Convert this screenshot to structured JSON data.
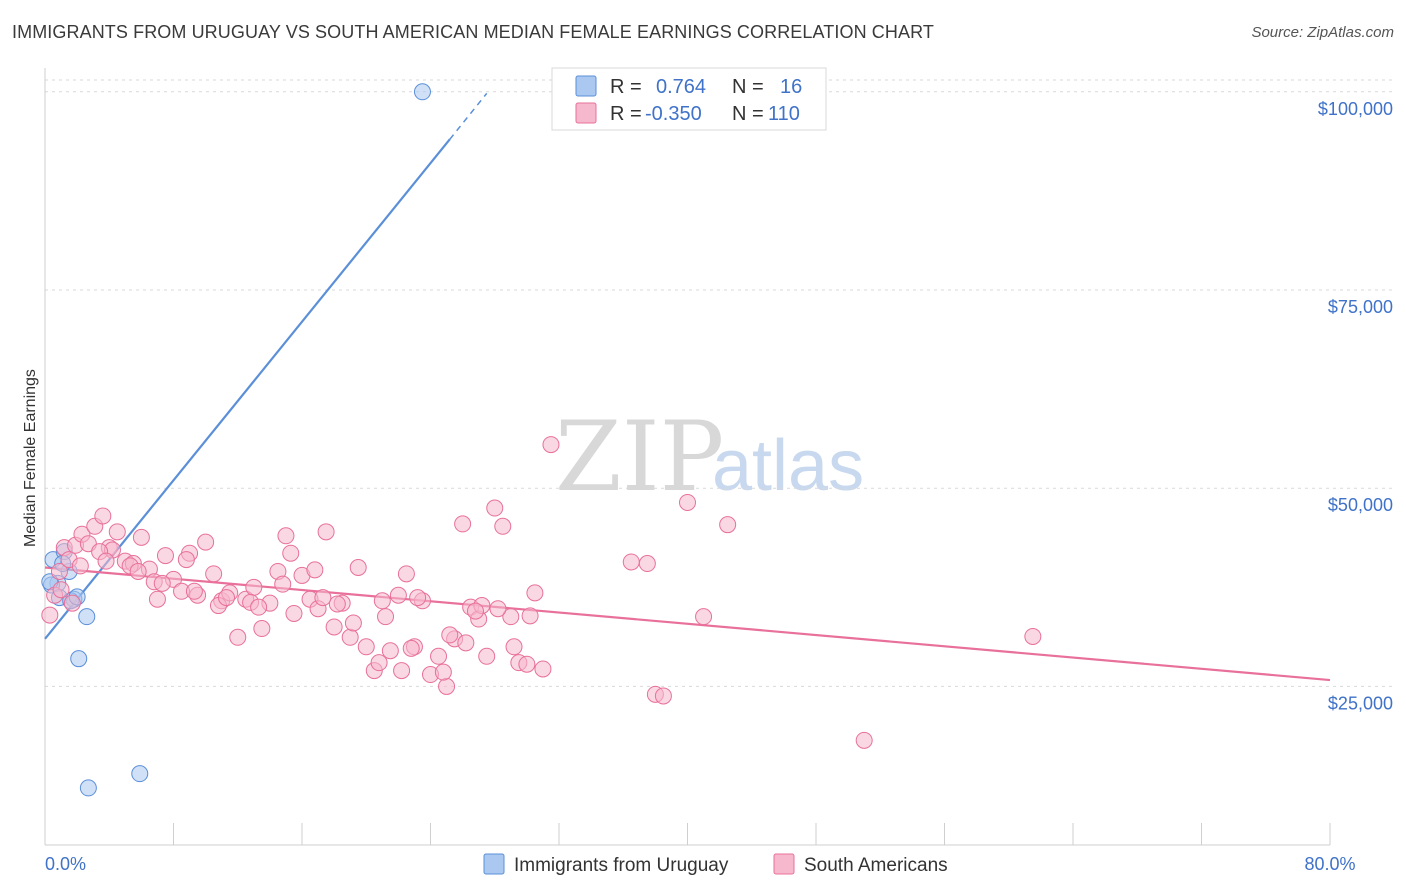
{
  "header": {
    "title": "IMMIGRANTS FROM URUGUAY VS SOUTH AMERICAN MEDIAN FEMALE EARNINGS CORRELATION CHART",
    "source": "Source: ZipAtlas.com"
  },
  "watermark": {
    "zip": "ZIP",
    "atlas": "atlas"
  },
  "legend": {
    "rows": [
      {
        "r_label": "R =",
        "r_value": "0.764",
        "n_label": "N =",
        "n_value": "16",
        "color": "#aac8f0"
      },
      {
        "r_label": "R =",
        "r_value": "-0.350",
        "n_label": "N =",
        "n_value": "110",
        "color": "#f6b8cc"
      }
    ]
  },
  "bottom_legend": [
    {
      "label": "Immigrants from Uruguay",
      "color": "#aac8f0"
    },
    {
      "label": "South Americans",
      "color": "#f6b8cc"
    }
  ],
  "chart_data": {
    "type": "scatter",
    "ylabel": "Median Female Earnings",
    "xlim": [
      0,
      80
    ],
    "ylim": [
      5000,
      103000
    ],
    "x_tick_labels": [
      {
        "value": 0,
        "label": "0.0%"
      },
      {
        "value": 80,
        "label": "80.0%"
      }
    ],
    "y_ticks": [
      {
        "value": 25000,
        "label": "$25,000"
      },
      {
        "value": 50000,
        "label": "$50,000"
      },
      {
        "value": 75000,
        "label": "$75,000"
      },
      {
        "value": 100000,
        "label": "$100,000"
      }
    ],
    "grid": "horizontal dashed",
    "series": [
      {
        "color": "#5b8fd8",
        "fill": "#aac8f0",
        "points": [
          [
            0.5,
            41000
          ],
          [
            0.8,
            38000
          ],
          [
            0.4,
            37800
          ],
          [
            1.2,
            42000
          ],
          [
            1.5,
            39500
          ],
          [
            0.9,
            36200
          ],
          [
            1.8,
            36000
          ],
          [
            1.6,
            35800
          ],
          [
            2.0,
            36300
          ],
          [
            2.6,
            33800
          ],
          [
            2.1,
            28500
          ],
          [
            2.7,
            12200
          ],
          [
            5.9,
            14000
          ],
          [
            23.5,
            100000
          ],
          [
            0.3,
            38200
          ],
          [
            1.1,
            40500
          ]
        ],
        "trend": {
          "x0": 0,
          "y0": 31000,
          "x1": 25.2,
          "y1": 94000,
          "dash_x1": 27.5,
          "dash_y1": 99800
        }
      },
      {
        "color": "#e8709a",
        "fill": "#f6b8cc",
        "points": [
          [
            0.3,
            34000
          ],
          [
            0.6,
            36500
          ],
          [
            0.9,
            39500
          ],
          [
            1.2,
            42500
          ],
          [
            1.5,
            41000
          ],
          [
            1.9,
            42800
          ],
          [
            2.3,
            44200
          ],
          [
            2.7,
            43000
          ],
          [
            3.1,
            45200
          ],
          [
            3.6,
            46500
          ],
          [
            4.0,
            42500
          ],
          [
            4.5,
            44500
          ],
          [
            5.0,
            40800
          ],
          [
            5.5,
            40500
          ],
          [
            6.0,
            43800
          ],
          [
            6.5,
            39800
          ],
          [
            7.0,
            36000
          ],
          [
            7.5,
            41500
          ],
          [
            8.0,
            38500
          ],
          [
            8.5,
            37000
          ],
          [
            9.0,
            41800
          ],
          [
            9.5,
            36500
          ],
          [
            10.0,
            43200
          ],
          [
            10.5,
            39200
          ],
          [
            11.0,
            35800
          ],
          [
            11.5,
            36800
          ],
          [
            12.0,
            31200
          ],
          [
            12.5,
            36000
          ],
          [
            13.0,
            37500
          ],
          [
            13.5,
            32300
          ],
          [
            14.0,
            35500
          ],
          [
            14.5,
            39500
          ],
          [
            15.0,
            44000
          ],
          [
            15.5,
            34200
          ],
          [
            16.0,
            39000
          ],
          [
            16.5,
            36000
          ],
          [
            17.0,
            34800
          ],
          [
            17.5,
            44500
          ],
          [
            18.0,
            32500
          ],
          [
            18.5,
            35500
          ],
          [
            19.0,
            31200
          ],
          [
            19.5,
            40000
          ],
          [
            20.0,
            30000
          ],
          [
            20.5,
            27000
          ],
          [
            21.0,
            35800
          ],
          [
            21.5,
            29500
          ],
          [
            22.0,
            36500
          ],
          [
            22.5,
            39200
          ],
          [
            23.0,
            30000
          ],
          [
            23.5,
            35800
          ],
          [
            24.0,
            26500
          ],
          [
            24.5,
            28800
          ],
          [
            25.0,
            25000
          ],
          [
            25.5,
            31000
          ],
          [
            26.0,
            45500
          ],
          [
            26.5,
            35000
          ],
          [
            27.0,
            33500
          ],
          [
            27.5,
            28800
          ],
          [
            28.0,
            47500
          ],
          [
            28.5,
            45200
          ],
          [
            29.0,
            33800
          ],
          [
            29.5,
            28000
          ],
          [
            30.0,
            27800
          ],
          [
            30.5,
            36800
          ],
          [
            31.0,
            27200
          ],
          [
            31.5,
            55500
          ],
          [
            36.5,
            40700
          ],
          [
            37.5,
            40500
          ],
          [
            38.0,
            24000
          ],
          [
            38.5,
            23800
          ],
          [
            40.0,
            48200
          ],
          [
            41.0,
            33800
          ],
          [
            42.5,
            45400
          ],
          [
            51.0,
            18200
          ],
          [
            61.5,
            31300
          ],
          [
            1.0,
            37200
          ],
          [
            2.2,
            40200
          ],
          [
            4.2,
            42200
          ],
          [
            6.8,
            38200
          ],
          [
            8.8,
            41000
          ],
          [
            10.8,
            35200
          ],
          [
            12.8,
            35600
          ],
          [
            14.8,
            37900
          ],
          [
            16.8,
            39700
          ],
          [
            18.2,
            35400
          ],
          [
            19.2,
            33000
          ],
          [
            20.8,
            28000
          ],
          [
            22.2,
            27000
          ],
          [
            23.2,
            36200
          ],
          [
            24.8,
            26800
          ],
          [
            26.2,
            30500
          ],
          [
            27.2,
            35200
          ],
          [
            28.2,
            34800
          ],
          [
            29.2,
            30000
          ],
          [
            30.2,
            33900
          ],
          [
            1.7,
            35500
          ],
          [
            3.4,
            42000
          ],
          [
            5.3,
            40200
          ],
          [
            7.3,
            38000
          ],
          [
            9.3,
            37000
          ],
          [
            11.3,
            36200
          ],
          [
            13.3,
            35000
          ],
          [
            15.3,
            41800
          ],
          [
            17.3,
            36200
          ],
          [
            21.2,
            33800
          ],
          [
            22.8,
            29800
          ],
          [
            25.2,
            31500
          ],
          [
            26.8,
            34500
          ],
          [
            3.8,
            40800
          ],
          [
            5.8,
            39500
          ]
        ],
        "trend": {
          "x0": 0,
          "y0": 40000,
          "x1": 80,
          "y1": 25800
        }
      }
    ]
  }
}
